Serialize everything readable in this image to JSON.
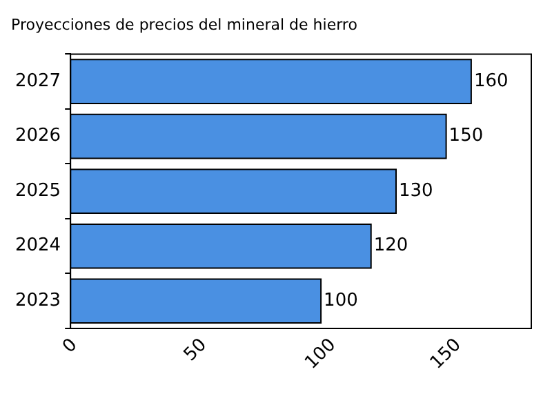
{
  "chart_data": {
    "type": "bar",
    "orientation": "horizontal",
    "title": "Proyecciones de precios del mineral de hierro",
    "categories": [
      "2027",
      "2026",
      "2025",
      "2024",
      "2023"
    ],
    "values": [
      160,
      150,
      130,
      120,
      100
    ],
    "color": "#4a90e2",
    "xlim": [
      0,
      184
    ],
    "xticks": [
      0,
      50,
      100,
      150
    ],
    "grid": false,
    "data_labels": true,
    "legend": false
  }
}
